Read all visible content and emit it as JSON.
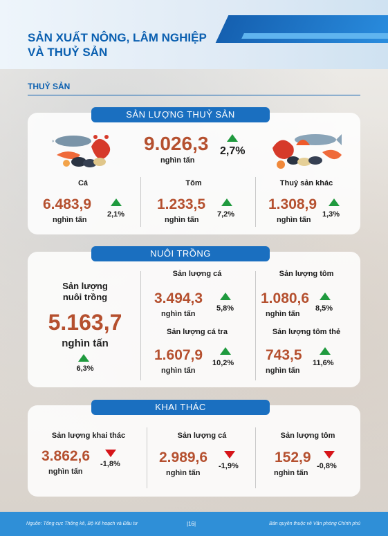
{
  "header": {
    "title_line1": "SẢN XUẤT NÔNG, LÂM NGHIỆP",
    "title_line2": "VÀ THUỶ SẢN"
  },
  "section": {
    "label": "THUỶ SẢN"
  },
  "production": {
    "pill": "SẢN LƯỢNG THUỶ SẢN",
    "total": {
      "value": "9.026,3",
      "unit": "nghìn tấn",
      "change": "2,7%",
      "trend": "up"
    },
    "items": [
      {
        "label": "Cá",
        "value": "6.483,9",
        "unit": "nghìn tấn",
        "change": "2,1%",
        "trend": "up"
      },
      {
        "label": "Tôm",
        "value": "1.233,5",
        "unit": "nghìn tấn",
        "change": "7,2%",
        "trend": "up"
      },
      {
        "label": "Thuỷ sản khác",
        "value": "1.308,9",
        "unit": "nghìn tấn",
        "change": "1,3%",
        "trend": "up"
      }
    ]
  },
  "aquaculture": {
    "pill": "NUÔI TRỒNG",
    "total": {
      "label_line1": "Sản lượng",
      "label_line2": "nuôi trồng",
      "value": "5.163,7",
      "unit": "nghìn tấn",
      "change": "6,3%",
      "trend": "up"
    },
    "items": [
      {
        "label": "Sản lượng cá",
        "value": "3.494,3",
        "unit": "nghìn tấn",
        "change": "5,8%",
        "trend": "up"
      },
      {
        "label": "Sản lượng tôm",
        "value": "1.080,6",
        "unit": "nghìn tấn",
        "change": "8,5%",
        "trend": "up"
      },
      {
        "label": "Sản lượng cá tra",
        "value": "1.607,9",
        "unit": "nghìn tấn",
        "change": "10,2%",
        "trend": "up"
      },
      {
        "label": "Sản lượng tôm thẻ",
        "value": "743,5",
        "unit": "nghìn tấn",
        "change": "11,6%",
        "trend": "up"
      }
    ]
  },
  "capture": {
    "pill": "KHAI THÁC",
    "items": [
      {
        "label": "Sản lượng khai thác",
        "value": "3.862,6",
        "unit": "nghìn tấn",
        "change": "-1,8%",
        "trend": "down"
      },
      {
        "label": "Sản lượng cá",
        "value": "2.989,6",
        "unit": "nghìn tấn",
        "change": "-1,9%",
        "trend": "down"
      },
      {
        "label": "Sản lượng tôm",
        "value": "152,9",
        "unit": "nghìn tấn",
        "change": "-0,8%",
        "trend": "down"
      }
    ]
  },
  "footer": {
    "source": "Nguồn: Tổng cục Thống kê, Bộ Kế hoạch và Đầu tư",
    "page": "|16|",
    "copyright": "Bản quyền thuộc về Văn phòng Chính phủ"
  },
  "colors": {
    "accent": "#0a5fb0",
    "number": "#b5502f",
    "up": "#1f9a3e",
    "down": "#d6151a",
    "footer": "#2f8fd7"
  },
  "icons": [
    "seafood-illustration-left",
    "seafood-illustration-right",
    "triangle-up-icon",
    "triangle-down-icon"
  ]
}
